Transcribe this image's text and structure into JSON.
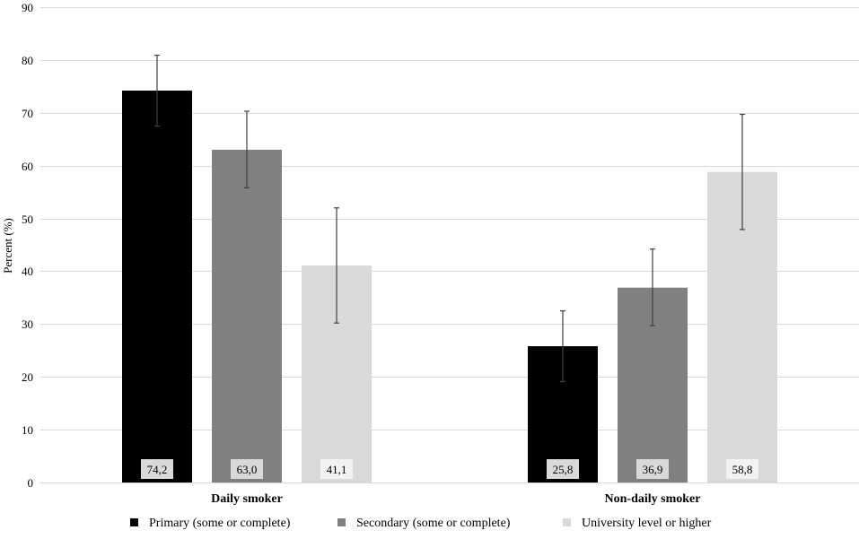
{
  "chart_data": {
    "type": "bar",
    "title": "",
    "xlabel": "",
    "ylabel": "Percent (%)",
    "ylim": [
      0,
      90
    ],
    "yticks": [
      0,
      10,
      20,
      30,
      40,
      50,
      60,
      70,
      80,
      90
    ],
    "grid": true,
    "legend_position": "bottom",
    "categories": [
      "Daily smoker",
      "Non-daily smoker"
    ],
    "series": [
      {
        "name": "Primary (some or complete)",
        "color": "#000000",
        "values": [
          74.2,
          25.8
        ],
        "labels": [
          "74,2",
          "25,8"
        ],
        "error_low": [
          67.5,
          19.1
        ],
        "error_high": [
          80.9,
          32.5
        ]
      },
      {
        "name": "Secondary (some or complete)",
        "color": "#808080",
        "values": [
          63.0,
          36.9
        ],
        "labels": [
          "63,0",
          "36,9"
        ],
        "error_low": [
          55.8,
          29.7
        ],
        "error_high": [
          70.3,
          44.2
        ]
      },
      {
        "name": "University level or higher",
        "color": "#d9d9d9",
        "values": [
          41.1,
          58.8
        ],
        "labels": [
          "41,1",
          "58,8"
        ],
        "error_low": [
          30.2,
          47.9
        ],
        "error_high": [
          52.0,
          69.7
        ]
      }
    ]
  },
  "colors": {
    "grid": "#d9d9d9",
    "axis_text": "#000000",
    "error_bar": "#404040",
    "label_box_bg": "#d9d9d9",
    "label_box_bg_light": "#f2f2f2"
  }
}
